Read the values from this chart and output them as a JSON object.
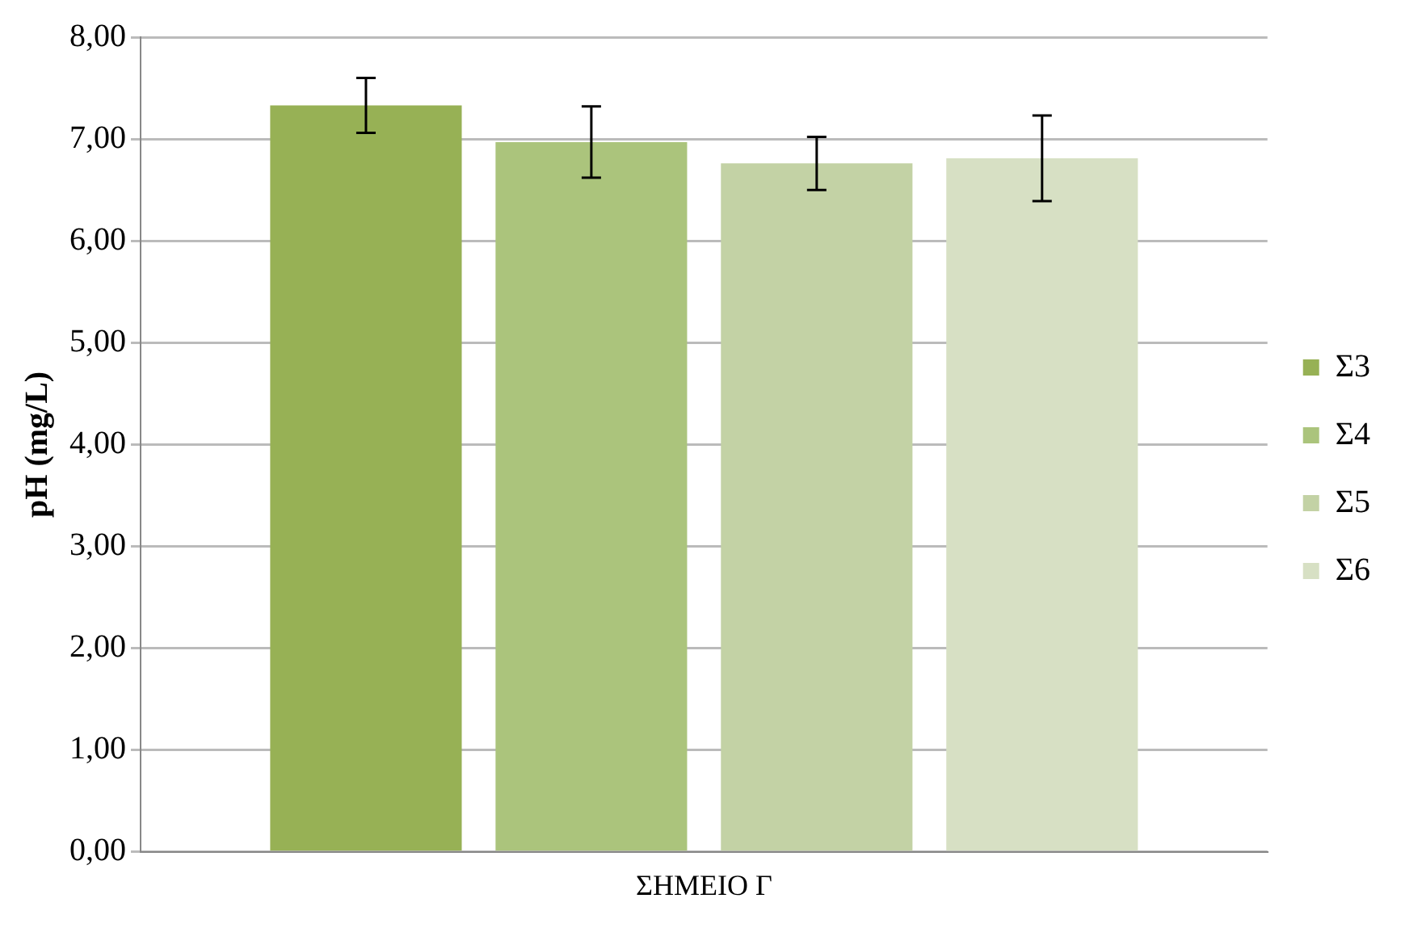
{
  "chart_data": {
    "type": "bar",
    "categories": [
      "ΣΗΜΕΙΟ Γ"
    ],
    "ylabel": "pH (mg/L)",
    "series": [
      {
        "name": "Σ3",
        "color": "#97b155",
        "values": [
          7.33
        ],
        "errors": [
          0.27
        ]
      },
      {
        "name": "Σ4",
        "color": "#abc47c",
        "values": [
          6.97
        ],
        "errors": [
          0.35
        ]
      },
      {
        "name": "Σ5",
        "color": "#c3d2a5",
        "values": [
          6.76
        ],
        "errors": [
          0.26
        ]
      },
      {
        "name": "Σ6",
        "color": "#d7e0c4",
        "values": [
          6.81
        ],
        "errors": [
          0.42
        ]
      }
    ],
    "ylim": [
      0,
      8
    ],
    "yticks": [
      {
        "value": 0,
        "label": "0,00"
      },
      {
        "value": 1,
        "label": "1,00"
      },
      {
        "value": 2,
        "label": "2,00"
      },
      {
        "value": 3,
        "label": "3,00"
      },
      {
        "value": 4,
        "label": "4,00"
      },
      {
        "value": 5,
        "label": "5,00"
      },
      {
        "value": 6,
        "label": "6,00"
      },
      {
        "value": 7,
        "label": "7,00"
      },
      {
        "value": 8,
        "label": "8,00"
      }
    ],
    "grid": "y",
    "legend": "right"
  }
}
